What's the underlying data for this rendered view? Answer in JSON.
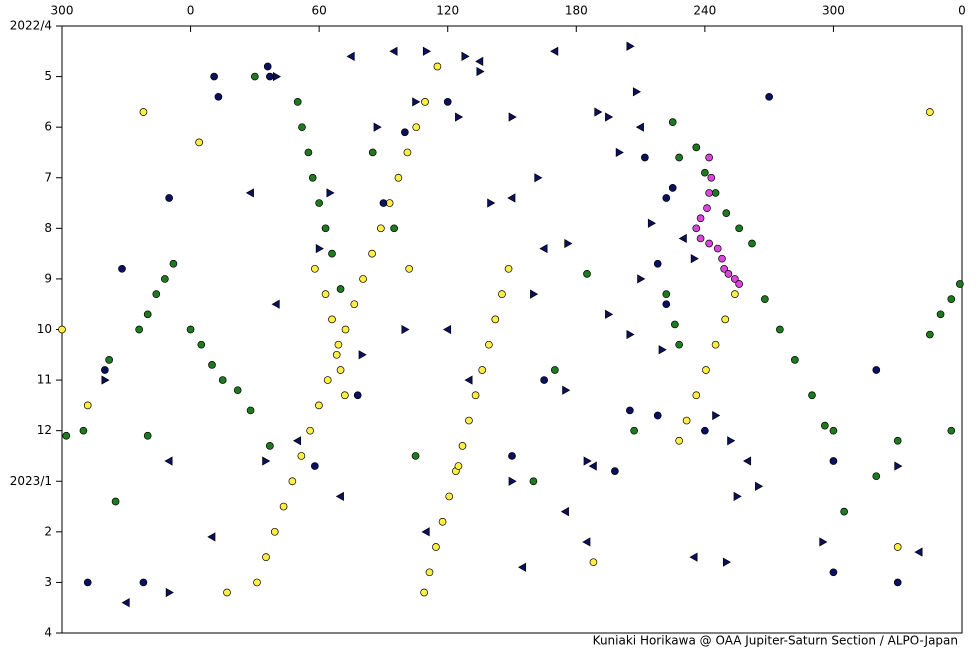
{
  "chart_data": {
    "type": "scatter",
    "credit": "Kuniaki Horikawa @ OAA Jupiter-Saturn Section / ALPO-Japan",
    "xlim": [
      -60,
      360
    ],
    "xticks": [
      {
        "value": -60,
        "label": "300"
      },
      0,
      60,
      120,
      180,
      240,
      300,
      {
        "value": 360,
        "label": "0"
      }
    ],
    "ylim": [
      0,
      12
    ],
    "y_inverted": true,
    "yticks": [
      {
        "value": 0,
        "label": "2022/4"
      },
      {
        "value": 1,
        "label": "5"
      },
      {
        "value": 2,
        "label": "6"
      },
      {
        "value": 3,
        "label": "7"
      },
      {
        "value": 4,
        "label": "8"
      },
      {
        "value": 5,
        "label": "9"
      },
      {
        "value": 6,
        "label": "10"
      },
      {
        "value": 7,
        "label": "11"
      },
      {
        "value": 8,
        "label": "12"
      },
      {
        "value": 9,
        "label": "2023/1"
      },
      {
        "value": 10,
        "label": "2"
      },
      {
        "value": 11,
        "label": "3"
      },
      {
        "value": 12,
        "label": "4"
      }
    ],
    "series": [
      {
        "color": "#ffee44",
        "marker": "circle",
        "x": [
          115.2,
          109.4,
          105.3,
          101.2,
          97.0,
          92.9,
          88.8,
          84.7,
          80.5,
          76.4,
          72.3,
          68.2,
          64.0,
          59.9,
          55.8,
          51.7,
          47.5,
          43.4,
          39.3,
          35.2,
          31.0,
          148.4,
          145.3,
          142.2,
          139.2,
          136.1,
          133.0,
          129.9,
          126.9,
          123.8,
          120.7,
          117.6,
          114.5,
          111.5,
          109.0,
          254,
          249.5,
          245,
          240.5,
          236,
          231.5,
          228,
          58,
          63,
          66,
          69,
          70,
          72,
          -22,
          345,
          -60,
          17,
          330,
          188,
          4,
          125,
          102,
          -48
        ],
        "values": [
          0.8,
          1.5,
          2.0,
          2.5,
          3.0,
          3.5,
          4.0,
          4.5,
          5.0,
          5.5,
          6.0,
          6.5,
          7.0,
          7.5,
          8.0,
          8.5,
          9.0,
          9.5,
          10.0,
          10.5,
          11.0,
          4.8,
          5.3,
          5.8,
          6.3,
          6.8,
          7.3,
          7.8,
          8.3,
          8.8,
          9.3,
          9.8,
          10.3,
          10.8,
          11.2,
          5.3,
          5.8,
          6.3,
          6.8,
          7.3,
          7.8,
          8.2,
          4.8,
          5.3,
          5.8,
          6.3,
          6.8,
          7.3,
          1.7,
          1.7,
          6.0,
          11.2,
          10.3,
          10.6,
          2.3,
          8.7,
          4.8,
          7.5
        ]
      },
      {
        "color": "#1e7a1e",
        "marker": "circle",
        "x": [
          -24,
          -20,
          -16,
          -12,
          -8,
          0,
          5,
          10,
          15,
          22,
          28,
          50,
          52,
          55,
          57,
          60,
          63,
          66,
          70,
          345,
          350,
          355,
          359,
          236,
          240,
          245,
          250,
          256,
          262,
          268,
          275,
          282,
          290,
          296,
          222,
          226,
          228,
          225,
          228,
          -50,
          -38,
          -20,
          37,
          105,
          160,
          185,
          207,
          330,
          320,
          305,
          -58,
          30,
          85,
          95,
          170,
          300,
          -35,
          355
        ],
        "values": [
          6.0,
          5.7,
          5.3,
          5.0,
          4.7,
          6.0,
          6.3,
          6.7,
          7.0,
          7.2,
          7.6,
          1.5,
          2.0,
          2.5,
          3.0,
          3.5,
          4.0,
          4.5,
          5.2,
          6.1,
          5.7,
          5.4,
          5.1,
          2.4,
          2.9,
          3.3,
          3.7,
          4.0,
          4.3,
          5.4,
          6.0,
          6.6,
          7.3,
          7.9,
          5.3,
          5.9,
          6.3,
          1.9,
          2.6,
          8.0,
          6.6,
          8.1,
          8.3,
          8.5,
          9.0,
          4.9,
          8.0,
          8.2,
          8.9,
          9.6,
          8.1,
          1.0,
          2.5,
          4.0,
          6.8,
          8.0,
          9.4,
          8.0
        ]
      },
      {
        "color": "#0a1060",
        "marker": "circle",
        "x": [
          11,
          13,
          36,
          37,
          -10,
          90,
          -40,
          -48,
          -22,
          270,
          320,
          330,
          300,
          212,
          222,
          218,
          222,
          218,
          205,
          240,
          150,
          165,
          78,
          58,
          100,
          120,
          198,
          225,
          300,
          -32
        ],
        "values": [
          1.0,
          1.4,
          0.8,
          1.0,
          3.4,
          3.5,
          6.8,
          11.0,
          11.0,
          1.4,
          6.8,
          11.0,
          8.6,
          2.6,
          3.4,
          4.7,
          5.5,
          7.7,
          7.6,
          8.0,
          8.5,
          7.0,
          7.3,
          8.7,
          2.1,
          1.5,
          8.8,
          3.2,
          10.8,
          4.8
        ]
      },
      {
        "color": "#0a1060",
        "marker": "triangle-right",
        "x": [
          87,
          105,
          125,
          135,
          150,
          162,
          176,
          195,
          205,
          208,
          195,
          215,
          235,
          245,
          252,
          265,
          295,
          330,
          80,
          60,
          100,
          40,
          65,
          175,
          185,
          205,
          110,
          140,
          160,
          220,
          250,
          150,
          128,
          -40,
          -10,
          35,
          200,
          190,
          210,
          255
        ],
        "values": [
          2.0,
          1.5,
          1.8,
          0.9,
          1.8,
          3.0,
          4.3,
          5.7,
          0.4,
          1.3,
          1.8,
          3.9,
          4.6,
          7.7,
          8.2,
          9.1,
          10.2,
          8.7,
          6.5,
          4.4,
          6.0,
          1.0,
          3.3,
          7.2,
          8.6,
          6.1,
          0.5,
          3.5,
          5.3,
          6.4,
          10.6,
          9.0,
          0.6,
          7.0,
          11.2,
          8.6,
          2.5,
          1.7,
          5.0,
          9.3
        ]
      },
      {
        "color": "#0a1060",
        "marker": "triangle-left",
        "x": [
          135,
          150,
          120,
          175,
          188,
          165,
          -10,
          230,
          75,
          95,
          28,
          40,
          10,
          235,
          130,
          210,
          70,
          155,
          -30,
          110,
          170,
          340,
          260,
          185,
          50
        ],
        "values": [
          0.7,
          3.4,
          6.0,
          9.6,
          8.7,
          4.4,
          8.6,
          4.2,
          0.6,
          0.5,
          3.3,
          5.5,
          10.1,
          10.5,
          7.0,
          2.0,
          9.3,
          10.7,
          11.4,
          10.0,
          0.5,
          10.4,
          8.6,
          10.2,
          8.2
        ]
      },
      {
        "color": "#dd44dd",
        "marker": "circle",
        "x": [
          242,
          243,
          242,
          241,
          238,
          236,
          238,
          242,
          246,
          248,
          249,
          251,
          254,
          256
        ],
        "values": [
          2.6,
          3.0,
          3.3,
          3.6,
          3.8,
          4.0,
          4.2,
          4.3,
          4.4,
          4.6,
          4.8,
          4.9,
          5.0,
          5.1
        ]
      }
    ]
  }
}
